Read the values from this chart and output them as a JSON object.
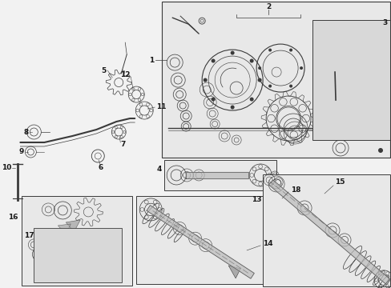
{
  "fig_width": 4.89,
  "fig_height": 3.6,
  "dpi": 100,
  "bg": "#f2f2f2",
  "box_bg": "#e8e8e8",
  "box_bg2": "#d8d8d8",
  "lc": "#3a3a3a",
  "lw_thin": 0.4,
  "lw_med": 0.7,
  "lw_thick": 1.2
}
